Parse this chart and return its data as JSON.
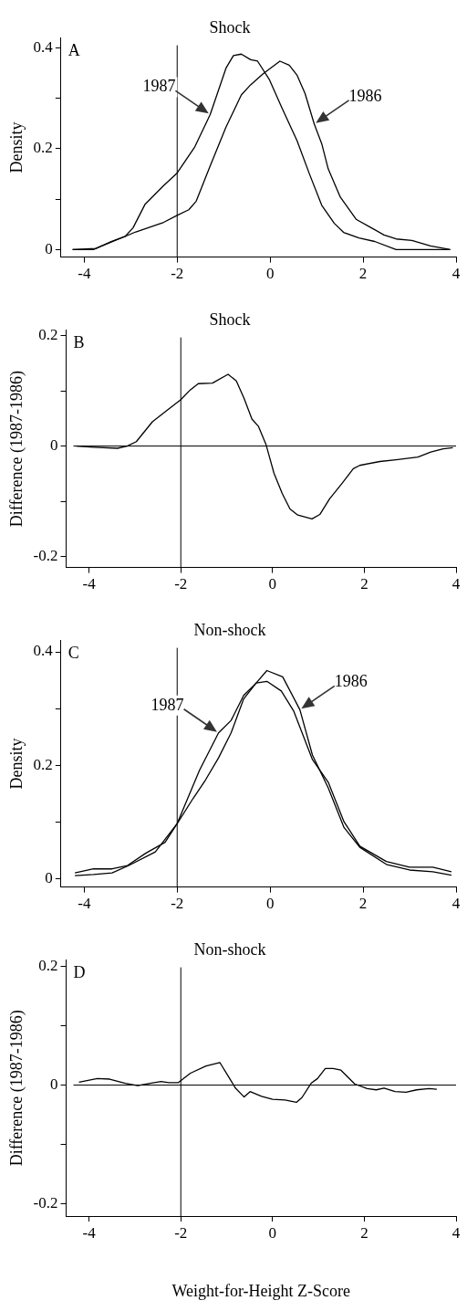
{
  "chart_data": [
    {
      "type": "line",
      "title": "Shock",
      "ylabel": "Density",
      "xlim": [
        -4.5,
        4
      ],
      "xticks": [
        -4,
        -2,
        0,
        2,
        4
      ],
      "ylim": [
        -0.015,
        0.42
      ],
      "yticks": [
        0,
        {
          "value": 0.1,
          "label": null
        },
        0.2,
        {
          "value": 0.3,
          "label": null
        },
        0.4
      ],
      "grid": false,
      "ref_lines": [
        {
          "axis": "x",
          "value": -2,
          "color": "#000000"
        }
      ],
      "annotations": [
        "A"
      ],
      "series": [
        {
          "name": "1987",
          "color": "#000000",
          "x": [
            -4.25,
            -3.75,
            -3.12,
            -2.95,
            -2.69,
            -2.29,
            -2,
            -1.62,
            -1.29,
            -0.95,
            -0.79,
            -0.62,
            -0.42,
            -0.27,
            -0.02,
            0.25,
            0.58,
            0.85,
            1.11,
            1.38,
            1.58,
            1.91,
            2.25,
            2.71,
            3.85
          ],
          "values": [
            0,
            0.002,
            0.026,
            0.043,
            0.09,
            0.127,
            0.152,
            0.204,
            0.268,
            0.36,
            0.385,
            0.388,
            0.377,
            0.374,
            0.338,
            0.282,
            0.216,
            0.149,
            0.088,
            0.052,
            0.034,
            0.023,
            0.016,
            0,
            0
          ]
        },
        {
          "name": "1986",
          "color": "#000000",
          "x": [
            -4.25,
            -3.8,
            -3.42,
            -3.12,
            -2.89,
            -2.29,
            -2,
            -1.75,
            -1.59,
            -1.29,
            -0.95,
            -0.62,
            -0.42,
            -0.15,
            0.21,
            0.41,
            0.58,
            0.75,
            0.95,
            1.11,
            1.25,
            1.51,
            1.85,
            2.18,
            2.45,
            2.71,
            3.05,
            3.45,
            3.88
          ],
          "values": [
            0,
            0,
            0.016,
            0.026,
            0.035,
            0.054,
            0.068,
            0.079,
            0.096,
            0.166,
            0.243,
            0.307,
            0.327,
            0.349,
            0.374,
            0.366,
            0.346,
            0.31,
            0.249,
            0.21,
            0.16,
            0.104,
            0.06,
            0.043,
            0.029,
            0.021,
            0.018,
            0.007,
            0
          ]
        }
      ]
    },
    {
      "type": "line",
      "title": "Shock",
      "ylabel": "Difference (1987-1986)",
      "xlim": [
        -4.5,
        4
      ],
      "xticks": [
        -4,
        -2,
        0,
        2,
        4
      ],
      "ylim": [
        -0.22,
        0.21
      ],
      "yticks": [
        -0.2,
        {
          "value": -0.1,
          "label": null
        },
        0,
        {
          "value": 0.1,
          "label": null
        },
        0.2
      ],
      "grid": false,
      "ref_lines": [
        {
          "axis": "x",
          "value": -2,
          "color": "#000000"
        },
        {
          "axis": "y",
          "value": 0,
          "color": "#000000"
        }
      ],
      "annotations": [
        "B"
      ],
      "series": [
        {
          "color": "#000000",
          "x": [
            -4.28,
            -3.9,
            -3.38,
            -3.17,
            -2.97,
            -2.62,
            -2.34,
            -2,
            -1.79,
            -1.62,
            -1.31,
            -0.97,
            -0.79,
            -0.62,
            -0.45,
            -0.31,
            -0.14,
            0.03,
            0.21,
            0.38,
            0.55,
            0.86,
            1.03,
            1.24,
            1.52,
            1.76,
            1.9,
            2.34,
            2.69,
            3.17,
            3.45,
            3.72,
            3.93
          ],
          "values": [
            0,
            -0.002,
            -0.004,
            0,
            0.008,
            0.044,
            0.062,
            0.084,
            0.102,
            0.113,
            0.114,
            0.13,
            0.118,
            0.086,
            0.049,
            0.036,
            0.002,
            -0.049,
            -0.086,
            -0.114,
            -0.125,
            -0.132,
            -0.124,
            -0.096,
            -0.067,
            -0.041,
            -0.035,
            -0.028,
            -0.025,
            -0.02,
            -0.011,
            -0.005,
            -0.003
          ]
        }
      ]
    },
    {
      "type": "line",
      "title": "Non-shock",
      "ylabel": "Density",
      "xlim": [
        -4.5,
        4
      ],
      "xticks": [
        -4,
        -2,
        0,
        2,
        4
      ],
      "ylim": [
        -0.015,
        0.42
      ],
      "yticks": [
        0,
        {
          "value": 0.1,
          "label": null
        },
        0.2,
        {
          "value": 0.3,
          "label": null
        },
        0.4
      ],
      "grid": false,
      "ref_lines": [
        {
          "axis": "x",
          "value": -2,
          "color": "#000000"
        }
      ],
      "annotations": [
        "C"
      ],
      "series": [
        {
          "name": "1987",
          "color": "#000000",
          "x": [
            -4.2,
            -3.8,
            -3.4,
            -3.07,
            -2.67,
            -2.26,
            -2,
            -1.52,
            -1.11,
            -0.84,
            -0.57,
            -0.3,
            -0.07,
            0.24,
            0.51,
            0.91,
            1.25,
            1.59,
            1.93,
            2.5,
            3,
            3.5,
            3.9
          ],
          "values": [
            0.01,
            0.017,
            0.017,
            0.023,
            0.045,
            0.064,
            0.097,
            0.191,
            0.257,
            0.279,
            0.323,
            0.345,
            0.348,
            0.331,
            0.295,
            0.21,
            0.17,
            0.1,
            0.057,
            0.03,
            0.02,
            0.02,
            0.012
          ]
        },
        {
          "name": "1986",
          "color": "#000000",
          "x": [
            -4.2,
            -3.8,
            -3.4,
            -3.04,
            -2.47,
            -2,
            -1.66,
            -1.39,
            -1.11,
            -0.84,
            -0.57,
            -0.3,
            -0.07,
            0.27,
            0.64,
            0.91,
            1.25,
            1.59,
            1.93,
            2.5,
            3,
            3.5,
            3.9
          ],
          "values": [
            0.005,
            0.007,
            0.01,
            0.023,
            0.047,
            0.097,
            0.141,
            0.174,
            0.213,
            0.257,
            0.317,
            0.345,
            0.367,
            0.356,
            0.298,
            0.218,
            0.16,
            0.09,
            0.055,
            0.025,
            0.015,
            0.012,
            0.006
          ]
        }
      ]
    },
    {
      "type": "line",
      "title": "Non-shock",
      "ylabel": "Difference (1987-1986)",
      "xlabel": "Weight-for-Height Z-Score",
      "xlim": [
        -4.5,
        4
      ],
      "xticks": [
        -4,
        -2,
        0,
        2,
        4
      ],
      "ylim": [
        -0.22,
        0.21
      ],
      "yticks": [
        -0.2,
        {
          "value": -0.1,
          "label": null
        },
        0,
        {
          "value": 0.1,
          "label": null
        },
        0.2
      ],
      "grid": false,
      "ref_lines": [
        {
          "axis": "x",
          "value": -2,
          "color": "#000000"
        },
        {
          "axis": "y",
          "value": 0,
          "color": "#000000"
        }
      ],
      "annotations": [
        "D"
      ],
      "series": [
        {
          "color": "#000000",
          "x": [
            -4.22,
            -3.82,
            -3.55,
            -3.21,
            -2.94,
            -2.67,
            -2.43,
            -2.26,
            -2.06,
            -1.79,
            -1.45,
            -1.15,
            -0.95,
            -0.81,
            -0.62,
            -0.49,
            -0.24,
            0,
            0.27,
            0.52,
            0.64,
            0.84,
            0.98,
            1.15,
            1.32,
            1.49,
            1.79,
            2.06,
            2.26,
            2.43,
            2.67,
            2.91,
            3.14,
            3.41,
            3.58
          ],
          "values": [
            0.005,
            0.011,
            0.01,
            0.003,
            -0.001,
            0.003,
            0.006,
            0.004,
            0.004,
            0.02,
            0.032,
            0.038,
            0.013,
            -0.005,
            -0.02,
            -0.011,
            -0.019,
            -0.024,
            -0.025,
            -0.029,
            -0.021,
            0.003,
            0.011,
            0.028,
            0.028,
            0.025,
            0.002,
            -0.006,
            -0.008,
            -0.005,
            -0.011,
            -0.012,
            -0.008,
            -0.006,
            -0.007
          ]
        }
      ]
    }
  ]
}
